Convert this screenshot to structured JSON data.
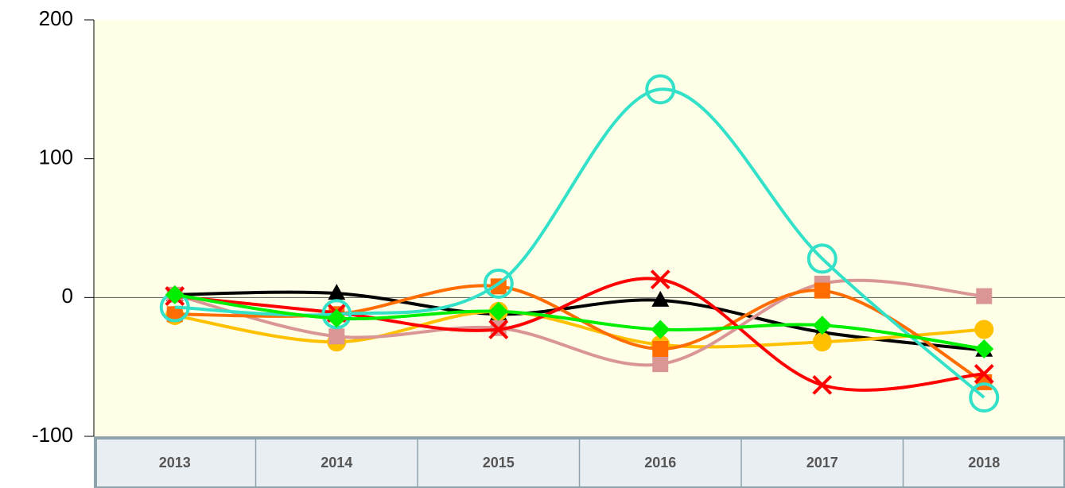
{
  "chart_data": {
    "type": "line",
    "smooth": true,
    "categories": [
      "2013",
      "2014",
      "2015",
      "2016",
      "2017",
      "2018"
    ],
    "ylim": [
      -100,
      200
    ],
    "yticks": [
      -100,
      0,
      100,
      200
    ],
    "series": [
      {
        "color": "#000000",
        "marker": "triangle",
        "values": [
          2,
          3,
          -12,
          -2,
          -25,
          -38
        ]
      },
      {
        "color": "#ffc000",
        "marker": "circle",
        "values": [
          -13,
          -32,
          -10,
          -34,
          -32,
          -23
        ]
      },
      {
        "color": "#d99694",
        "marker": "square",
        "values": [
          2,
          -28,
          -22,
          -48,
          10,
          1
        ]
      },
      {
        "color": "#ff6d00",
        "marker": "square",
        "values": [
          -12,
          -12,
          8,
          -37,
          5,
          -61
        ]
      },
      {
        "color": "#ff0000",
        "marker": "x",
        "values": [
          1,
          -11,
          -23,
          13,
          -63,
          -55
        ]
      },
      {
        "color": "#33e0c8",
        "marker": "ring",
        "values": [
          -7,
          -12,
          10,
          150,
          28,
          -72
        ]
      },
      {
        "color": "#00ee00",
        "marker": "diamond",
        "values": [
          2,
          -15,
          -10,
          -23,
          -20,
          -37
        ]
      }
    ]
  }
}
